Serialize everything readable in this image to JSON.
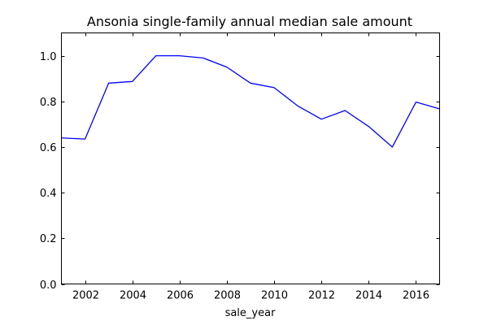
{
  "chart_data": {
    "type": "line",
    "title": "Ansonia single-family annual median sale amount",
    "xlabel": "sale_year",
    "ylabel": "",
    "xlim": [
      2001,
      2017
    ],
    "ylim": [
      0.0,
      1.1
    ],
    "x_ticks": [
      2002,
      2004,
      2006,
      2008,
      2010,
      2012,
      2014,
      2016
    ],
    "x_tick_labels": [
      "2002",
      "2004",
      "2006",
      "2008",
      "2010",
      "2012",
      "2014",
      "2016"
    ],
    "y_ticks": [
      0.0,
      0.2,
      0.4,
      0.6,
      0.8,
      1.0
    ],
    "y_tick_labels": [
      "0.0",
      "0.2",
      "0.4",
      "0.6",
      "0.8",
      "1.0"
    ],
    "grid": false,
    "legend": "none",
    "x": [
      2001,
      2002,
      2003,
      2004,
      2005,
      2006,
      2007,
      2008,
      2009,
      2010,
      2011,
      2012,
      2013,
      2014,
      2015,
      2016,
      2017
    ],
    "series": [
      {
        "color": "#0000ff",
        "values": [
          0.64,
          0.635,
          0.88,
          0.887,
          1.0,
          1.0,
          0.99,
          0.95,
          0.88,
          0.86,
          0.78,
          0.722,
          0.76,
          0.69,
          0.6,
          0.797,
          0.767
        ]
      }
    ]
  }
}
